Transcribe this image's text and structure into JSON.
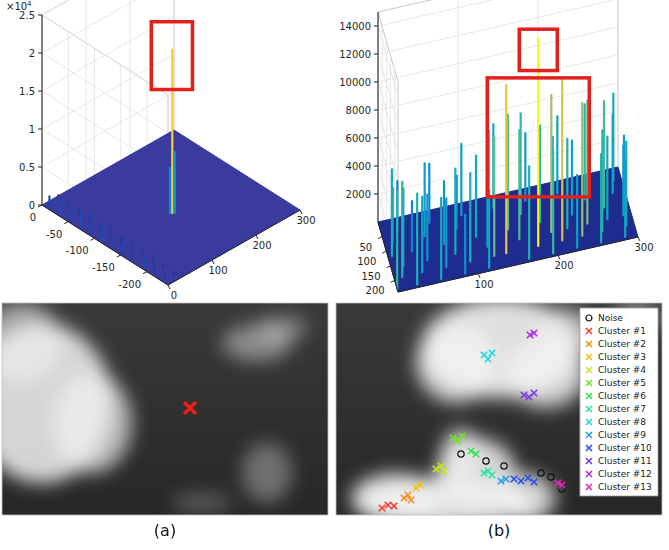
{
  "chart_data": [
    {
      "type": "surface3d",
      "xlim": [
        0,
        300
      ],
      "xticks": [
        0,
        100,
        200,
        300
      ],
      "ylim": [
        0,
        -240
      ],
      "yticks": [
        0,
        -50,
        -100,
        -150,
        -200
      ],
      "zlim": [
        0,
        25000
      ],
      "zticks": [
        {
          "value": 0,
          "label": "0"
        },
        {
          "value": 5000,
          "label": "0.5"
        },
        {
          "value": 10000,
          "label": "1"
        },
        {
          "value": 15000,
          "label": "1.5"
        },
        {
          "value": 20000,
          "label": "2"
        },
        {
          "value": 25000,
          "label": "2.5"
        }
      ],
      "z_multiplier": "×10",
      "z_exponent": "4",
      "grid": true,
      "color": "#3b3b9e",
      "series": [
        {
          "x": [
            5,
            25,
            5,
            25,
            5,
            25,
            5,
            25,
            5,
            25,
            5,
            25,
            5,
            25,
            5,
            25,
            5,
            25,
            5,
            25,
            5,
            25,
            5,
            25,
            138,
            141,
            144
          ],
          "y": [
            -10,
            -10,
            -30,
            -30,
            -50,
            -50,
            -70,
            -70,
            -90,
            -90,
            -110,
            -110,
            -130,
            -130,
            -150,
            -150,
            -170,
            -170,
            -190,
            -190,
            -210,
            -210,
            -230,
            -230,
            -128,
            -130,
            -132
          ],
          "z": [
            1400,
            900,
            1800,
            1100,
            1600,
            700,
            2000,
            1200,
            1500,
            800,
            1900,
            1000,
            1300,
            600,
            1700,
            900,
            1200,
            700,
            1500,
            800,
            1000,
            500,
            900,
            400,
            6000,
            21500,
            8000
          ]
        }
      ],
      "highlights": [
        {
          "xlim": [
            100,
            180
          ],
          "y": -130,
          "zlim": [
            18000,
            23500
          ],
          "color": "#e3211c"
        }
      ]
    },
    {
      "type": "surface3d",
      "xlim": [
        0,
        300
      ],
      "xticks": [
        100,
        200,
        300
      ],
      "ylim": [
        0,
        240
      ],
      "yticks": [
        50,
        100,
        150,
        200
      ],
      "zlim": [
        0,
        15000
      ],
      "zticks": [
        2000,
        4000,
        6000,
        8000,
        10000,
        12000,
        14000
      ],
      "grid": true,
      "color": "#1f2c8f",
      "series": [
        {
          "x": [
            20,
            60,
            100,
            140,
            180,
            220,
            260,
            290,
            10,
            50,
            90,
            130,
            170,
            210,
            250,
            285,
            5,
            30,
            70,
            110,
            150,
            190,
            230,
            270,
            295,
            15,
            45,
            80,
            120,
            160,
            200,
            220,
            245,
            270,
            290,
            10,
            35,
            65,
            95,
            125,
            140,
            180,
            210,
            235,
            260,
            290,
            0,
            25,
            55,
            85,
            115,
            165,
            195,
            225,
            255,
            285
          ],
          "y": [
            40,
            40,
            40,
            40,
            40,
            40,
            40,
            40,
            80,
            80,
            80,
            80,
            80,
            80,
            80,
            80,
            120,
            120,
            120,
            120,
            120,
            120,
            120,
            120,
            120,
            160,
            160,
            160,
            160,
            160,
            160,
            160,
            160,
            160,
            160,
            195,
            195,
            195,
            195,
            195,
            195,
            195,
            195,
            195,
            195,
            195,
            230,
            230,
            230,
            230,
            230,
            230,
            230,
            230,
            230,
            230
          ],
          "z": [
            3500,
            4200,
            5100,
            6000,
            4800,
            5500,
            7000,
            6200,
            4000,
            5200,
            3800,
            6500,
            7200,
            5000,
            6800,
            5600,
            6200,
            3600,
            4500,
            5800,
            8200,
            6900,
            5300,
            7600,
            4800,
            5500,
            4700,
            6100,
            5200,
            7800,
            9800,
            6400,
            8800,
            5900,
            5000,
            6800,
            5400,
            4900,
            6300,
            8500,
            12000,
            14800,
            11500,
            9500,
            7200,
            6000,
            7000,
            6500,
            5800,
            4200,
            5600,
            6600,
            7400,
            5200,
            6300,
            5500
          ]
        }
      ],
      "highlights": [
        {
          "xlim": [
            160,
            200
          ],
          "y": 195,
          "zlim": [
            13000,
            15000
          ],
          "color": "#e3211c"
        },
        {
          "xlim": [
            120,
            240
          ],
          "y": 195,
          "zlim": [
            4500,
            11000
          ],
          "color": "#e3211c"
        }
      ]
    },
    {
      "type": "scatter",
      "caption": "(a)",
      "xlim": [
        0,
        326
      ],
      "ylim": [
        0,
        212
      ],
      "tick_labels": false,
      "series": [
        {
          "color": "#e8211a",
          "marker": "x",
          "x": [
            188
          ],
          "y": [
            105
          ]
        }
      ]
    },
    {
      "type": "scatter",
      "caption": "(b)",
      "xlim": [
        0,
        326
      ],
      "ylim": [
        0,
        212
      ],
      "tick_labels": false,
      "legend": "upper right",
      "series": [
        {
          "name": "Noise",
          "color": "#111111",
          "marker": "o",
          "x": [
            125,
            150,
            168,
            205,
            215,
            226
          ],
          "y": [
            151,
            158,
            163,
            170,
            174,
            186
          ]
        },
        {
          "name": "Cluster #1",
          "color": "#ff3b30",
          "marker": "x",
          "x": [
            46,
            52,
            58
          ],
          "y": [
            205,
            202,
            203
          ]
        },
        {
          "name": "Cluster #2",
          "color": "#ff8c1a",
          "marker": "x",
          "x": [
            68,
            72,
            75
          ],
          "y": [
            195,
            192,
            197
          ]
        },
        {
          "name": "Cluster #3",
          "color": "#f2c311",
          "marker": "x",
          "x": [
            80,
            84
          ],
          "y": [
            185,
            182
          ]
        },
        {
          "name": "Cluster #4",
          "color": "#c8e61c",
          "marker": "x",
          "x": [
            100,
            105,
            108
          ],
          "y": [
            166,
            163,
            168
          ]
        },
        {
          "name": "Cluster #5",
          "color": "#6ee626",
          "marker": "x",
          "x": [
            117,
            122,
            126
          ],
          "y": [
            135,
            138,
            133
          ]
        },
        {
          "name": "Cluster #6",
          "color": "#2ee64a",
          "marker": "x",
          "x": [
            135,
            140
          ],
          "y": [
            148,
            151
          ]
        },
        {
          "name": "Cluster #7",
          "color": "#22e6a0",
          "marker": "x",
          "x": [
            148,
            152,
            156
          ],
          "y": [
            170,
            168,
            172
          ]
        },
        {
          "name": "Cluster #8",
          "color": "#1fd6e6",
          "marker": "x",
          "x": [
            148,
            152,
            156
          ],
          "y": [
            52,
            56,
            50
          ]
        },
        {
          "name": "Cluster #9",
          "color": "#2a9be6",
          "marker": "x",
          "x": [
            165,
            170
          ],
          "y": [
            178,
            176
          ]
        },
        {
          "name": "Cluster #10",
          "color": "#2a4fe6",
          "marker": "x",
          "x": [
            178,
            185,
            192,
            198
          ],
          "y": [
            176,
            178,
            175,
            179
          ]
        },
        {
          "name": "Cluster #11",
          "color": "#7a3ae6",
          "marker": "x",
          "x": [
            188,
            193,
            198
          ],
          "y": [
            92,
            94,
            90
          ]
        },
        {
          "name": "Cluster #12",
          "color": "#b02ae6",
          "marker": "x",
          "x": [
            194,
            198
          ],
          "y": [
            32,
            30
          ]
        },
        {
          "name": "Cluster #13",
          "color": "#e62ab8",
          "marker": "x",
          "x": [
            222,
            226
          ],
          "y": [
            180,
            182
          ]
        }
      ]
    }
  ]
}
